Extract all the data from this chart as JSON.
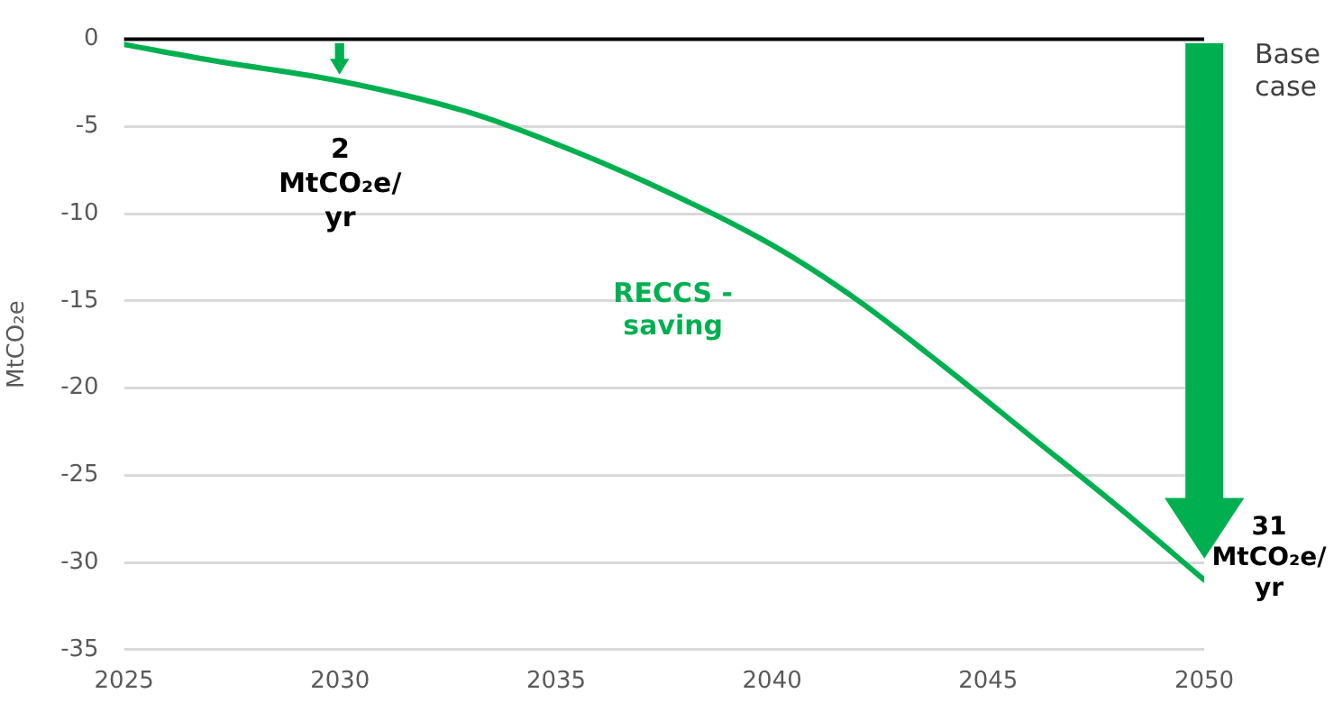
{
  "chart_data": {
    "type": "line",
    "ylabel": "MtCO₂e",
    "x": [
      2025,
      2027,
      2030,
      2033,
      2035,
      2037,
      2040,
      2042,
      2044,
      2046,
      2048,
      2050
    ],
    "series": [
      {
        "name": "RECCS - saving",
        "color": "#00b050",
        "values": [
          -0.3,
          -1.2,
          -2.4,
          -4.2,
          -6,
          -8.1,
          -11.8,
          -15,
          -18.8,
          -22.8,
          -26.8,
          -31
        ]
      }
    ],
    "xlim": [
      2025,
      2050
    ],
    "xticks": [
      2025,
      2030,
      2035,
      2040,
      2045,
      2050
    ],
    "ylim": [
      -35,
      0
    ],
    "yticks": [
      -35,
      -30,
      -25,
      -20,
      -15,
      -10,
      -5,
      0
    ],
    "grid": "y",
    "legend": false,
    "marker": "none",
    "line_style": "solid",
    "ref_lines": [
      {
        "axis": "y",
        "value": 0,
        "label": "Base case",
        "color": "#000000"
      }
    ],
    "annotations": [
      {
        "text": "2 MtCO₂e/yr",
        "x": 2030,
        "y": -2
      },
      {
        "text": "31 MtCO₂e/yr",
        "x": 2050,
        "y": -31
      }
    ]
  }
}
